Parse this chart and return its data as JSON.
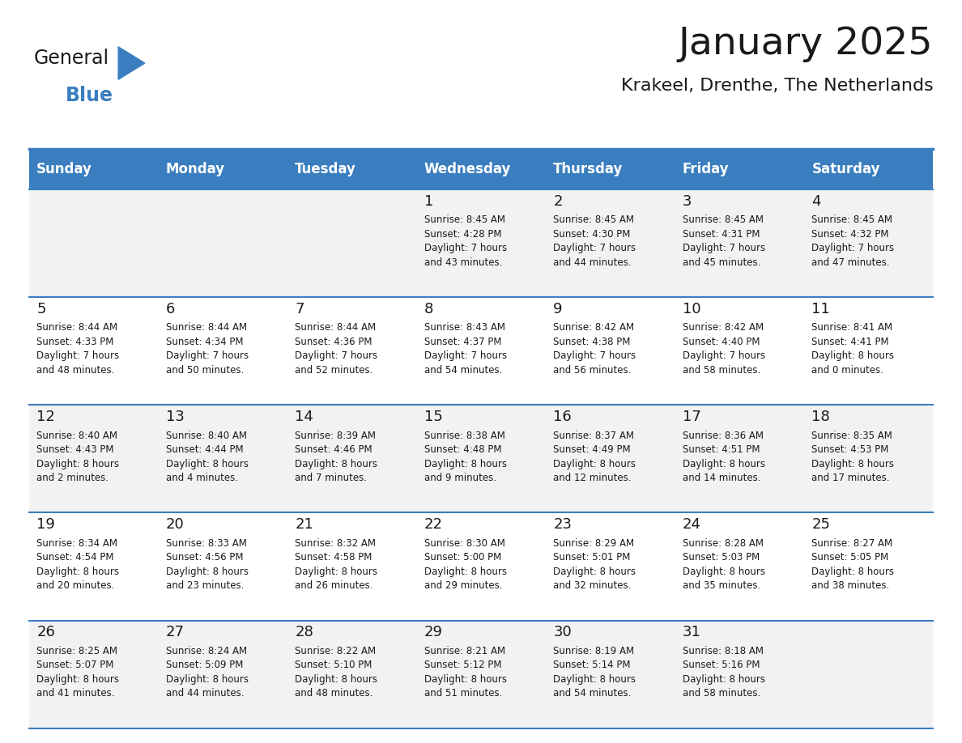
{
  "title": "January 2025",
  "subtitle": "Krakeel, Drenthe, The Netherlands",
  "header_color": "#3a7ebf",
  "header_text_color": "#ffffff",
  "cell_bg_even": "#f2f2f2",
  "cell_bg_odd": "#ffffff",
  "day_headers": [
    "Sunday",
    "Monday",
    "Tuesday",
    "Wednesday",
    "Thursday",
    "Friday",
    "Saturday"
  ],
  "calendar_data": [
    [
      "",
      "",
      "",
      "1\nSunrise: 8:45 AM\nSunset: 4:28 PM\nDaylight: 7 hours\nand 43 minutes.",
      "2\nSunrise: 8:45 AM\nSunset: 4:30 PM\nDaylight: 7 hours\nand 44 minutes.",
      "3\nSunrise: 8:45 AM\nSunset: 4:31 PM\nDaylight: 7 hours\nand 45 minutes.",
      "4\nSunrise: 8:45 AM\nSunset: 4:32 PM\nDaylight: 7 hours\nand 47 minutes."
    ],
    [
      "5\nSunrise: 8:44 AM\nSunset: 4:33 PM\nDaylight: 7 hours\nand 48 minutes.",
      "6\nSunrise: 8:44 AM\nSunset: 4:34 PM\nDaylight: 7 hours\nand 50 minutes.",
      "7\nSunrise: 8:44 AM\nSunset: 4:36 PM\nDaylight: 7 hours\nand 52 minutes.",
      "8\nSunrise: 8:43 AM\nSunset: 4:37 PM\nDaylight: 7 hours\nand 54 minutes.",
      "9\nSunrise: 8:42 AM\nSunset: 4:38 PM\nDaylight: 7 hours\nand 56 minutes.",
      "10\nSunrise: 8:42 AM\nSunset: 4:40 PM\nDaylight: 7 hours\nand 58 minutes.",
      "11\nSunrise: 8:41 AM\nSunset: 4:41 PM\nDaylight: 8 hours\nand 0 minutes."
    ],
    [
      "12\nSunrise: 8:40 AM\nSunset: 4:43 PM\nDaylight: 8 hours\nand 2 minutes.",
      "13\nSunrise: 8:40 AM\nSunset: 4:44 PM\nDaylight: 8 hours\nand 4 minutes.",
      "14\nSunrise: 8:39 AM\nSunset: 4:46 PM\nDaylight: 8 hours\nand 7 minutes.",
      "15\nSunrise: 8:38 AM\nSunset: 4:48 PM\nDaylight: 8 hours\nand 9 minutes.",
      "16\nSunrise: 8:37 AM\nSunset: 4:49 PM\nDaylight: 8 hours\nand 12 minutes.",
      "17\nSunrise: 8:36 AM\nSunset: 4:51 PM\nDaylight: 8 hours\nand 14 minutes.",
      "18\nSunrise: 8:35 AM\nSunset: 4:53 PM\nDaylight: 8 hours\nand 17 minutes."
    ],
    [
      "19\nSunrise: 8:34 AM\nSunset: 4:54 PM\nDaylight: 8 hours\nand 20 minutes.",
      "20\nSunrise: 8:33 AM\nSunset: 4:56 PM\nDaylight: 8 hours\nand 23 minutes.",
      "21\nSunrise: 8:32 AM\nSunset: 4:58 PM\nDaylight: 8 hours\nand 26 minutes.",
      "22\nSunrise: 8:30 AM\nSunset: 5:00 PM\nDaylight: 8 hours\nand 29 minutes.",
      "23\nSunrise: 8:29 AM\nSunset: 5:01 PM\nDaylight: 8 hours\nand 32 minutes.",
      "24\nSunrise: 8:28 AM\nSunset: 5:03 PM\nDaylight: 8 hours\nand 35 minutes.",
      "25\nSunrise: 8:27 AM\nSunset: 5:05 PM\nDaylight: 8 hours\nand 38 minutes."
    ],
    [
      "26\nSunrise: 8:25 AM\nSunset: 5:07 PM\nDaylight: 8 hours\nand 41 minutes.",
      "27\nSunrise: 8:24 AM\nSunset: 5:09 PM\nDaylight: 8 hours\nand 44 minutes.",
      "28\nSunrise: 8:22 AM\nSunset: 5:10 PM\nDaylight: 8 hours\nand 48 minutes.",
      "29\nSunrise: 8:21 AM\nSunset: 5:12 PM\nDaylight: 8 hours\nand 51 minutes.",
      "30\nSunrise: 8:19 AM\nSunset: 5:14 PM\nDaylight: 8 hours\nand 54 minutes.",
      "31\nSunrise: 8:18 AM\nSunset: 5:16 PM\nDaylight: 8 hours\nand 58 minutes.",
      ""
    ]
  ],
  "logo_text_general": "General",
  "logo_text_blue": "Blue",
  "logo_color_general": "#1a1a1a",
  "logo_color_blue": "#3a7ebf",
  "title_color": "#1a1a1a",
  "subtitle_color": "#1a1a1a",
  "divider_color": "#3a7ebf",
  "cell_text_color": "#1a1a1a",
  "cell_number_color": "#1a1a1a",
  "background_color": "#ffffff"
}
